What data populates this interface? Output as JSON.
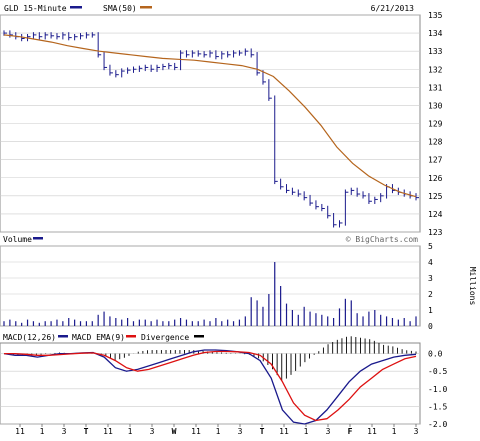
{
  "header": {
    "symbol_label": "GLD 15-Minute",
    "sma_label": "SMA(50)",
    "date": "6/21/2013"
  },
  "colors": {
    "price": "#1a1a8c",
    "sma": "#b5651d",
    "volume": "#1a1a8c",
    "macd": "#1a1a8c",
    "ema": "#dd1111",
    "divergence": "#000000",
    "grid": "#cccccc"
  },
  "volume_panel": {
    "label": "Volume",
    "units": "Millions",
    "brand": "© BigCharts.com"
  },
  "macd_panel": {
    "macd_label": "MACD(12,26)",
    "ema_label": "MACD EMA(9)",
    "divergence_label": "Divergence"
  },
  "chart_data": [
    {
      "type": "line",
      "title": "GLD 15-Minute",
      "ylim": [
        123,
        135
      ],
      "yticks": [
        123,
        124,
        125,
        126,
        127,
        128,
        129,
        130,
        131,
        132,
        133,
        134,
        135
      ],
      "x_labels": [
        "11",
        "1",
        "3",
        "T",
        "11",
        "1",
        "3",
        "W",
        "11",
        "1",
        "3",
        "T",
        "11",
        "1",
        "3",
        "F",
        "11",
        "1",
        "3"
      ],
      "series": [
        {
          "name": "GLD",
          "values": [
            134,
            133.9,
            133.8,
            133.7,
            133.8,
            133.9,
            133.8,
            133.9,
            133.85,
            133.8,
            133.9,
            133.75,
            133.8,
            133.85,
            133.9,
            133.9,
            132.8,
            132.1,
            131.8,
            131.7,
            131.9,
            131.95,
            132.0,
            132.05,
            132.1,
            132.0,
            132.1,
            132.15,
            132.2,
            132.1,
            132.9,
            132.8,
            132.9,
            132.85,
            132.8,
            132.9,
            132.7,
            132.85,
            132.8,
            132.9,
            132.9,
            133.0,
            132.8,
            131.8,
            131.3,
            130.4,
            125.8,
            125.5,
            125.3,
            125.2,
            125.1,
            124.9,
            124.6,
            124.4,
            124.3,
            123.9,
            123.4,
            123.5,
            125.2,
            125.3,
            125.1,
            125.0,
            124.7,
            124.8,
            125.0,
            125.5,
            125.3,
            125.2,
            125.1,
            125.0,
            124.9
          ]
        },
        {
          "name": "SMA(50)",
          "values": [
            133.9,
            133.8,
            133.65,
            133.5,
            133.3,
            133.15,
            133.0,
            132.9,
            132.8,
            132.7,
            132.6,
            132.55,
            132.5,
            132.4,
            132.3,
            132.2,
            132.0,
            131.6,
            130.8,
            129.9,
            128.9,
            127.7,
            126.8,
            126.1,
            125.6,
            125.2,
            124.95
          ]
        }
      ]
    },
    {
      "type": "bar",
      "title": "Volume",
      "ylabel": "Millions",
      "ylim": [
        0,
        5
      ],
      "yticks": [
        0,
        1,
        2,
        3,
        4,
        5
      ],
      "values": [
        0.3,
        0.4,
        0.3,
        0.2,
        0.4,
        0.3,
        0.2,
        0.3,
        0.3,
        0.4,
        0.3,
        0.5,
        0.4,
        0.3,
        0.3,
        0.3,
        0.7,
        0.9,
        0.6,
        0.5,
        0.4,
        0.5,
        0.3,
        0.4,
        0.4,
        0.3,
        0.4,
        0.3,
        0.3,
        0.4,
        0.5,
        0.4,
        0.3,
        0.3,
        0.4,
        0.3,
        0.5,
        0.3,
        0.4,
        0.3,
        0.4,
        0.6,
        1.8,
        1.6,
        1.2,
        2.0,
        4.0,
        2.5,
        1.4,
        1.0,
        0.7,
        1.2,
        0.9,
        0.8,
        0.7,
        0.6,
        0.5,
        1.1,
        1.7,
        1.6,
        0.8,
        0.6,
        0.9,
        1.0,
        0.7,
        0.6,
        0.5,
        0.4,
        0.5,
        0.3,
        0.6
      ]
    },
    {
      "type": "line",
      "title": "MACD(12,26)",
      "ylim": [
        -2.0,
        0.3
      ],
      "yticks": [
        0.0,
        -0.5,
        -1.0,
        -1.5,
        -2.0
      ],
      "series": [
        {
          "name": "MACD(12,26)",
          "values": [
            0.0,
            -0.05,
            -0.05,
            -0.1,
            -0.05,
            0.0,
            0.0,
            0.02,
            0.03,
            -0.1,
            -0.4,
            -0.5,
            -0.45,
            -0.35,
            -0.25,
            -0.15,
            -0.05,
            0.05,
            0.1,
            0.1,
            0.08,
            0.05,
            0.0,
            -0.2,
            -0.7,
            -1.6,
            -1.95,
            -2.0,
            -1.9,
            -1.6,
            -1.2,
            -0.8,
            -0.5,
            -0.3,
            -0.2,
            -0.1,
            -0.05,
            -0.02
          ]
        },
        {
          "name": "MACD EMA(9)",
          "values": [
            0.0,
            0.0,
            -0.02,
            -0.05,
            -0.05,
            -0.03,
            -0.01,
            0.01,
            0.02,
            -0.05,
            -0.2,
            -0.4,
            -0.5,
            -0.45,
            -0.35,
            -0.25,
            -0.15,
            -0.05,
            0.03,
            0.06,
            0.06,
            0.05,
            0.03,
            -0.05,
            -0.3,
            -0.8,
            -1.4,
            -1.75,
            -1.9,
            -1.85,
            -1.6,
            -1.3,
            -0.95,
            -0.7,
            -0.45,
            -0.3,
            -0.15,
            -0.08
          ]
        },
        {
          "name": "Divergence",
          "values": [
            0.0,
            -0.05,
            -0.03,
            -0.05,
            0.0,
            0.03,
            0.01,
            0.01,
            0.01,
            -0.05,
            -0.2,
            -0.1,
            0.05,
            0.1,
            0.1,
            0.1,
            0.1,
            0.1,
            0.07,
            0.04,
            0.02,
            0.0,
            -0.03,
            -0.15,
            -0.4,
            -0.8,
            -0.55,
            -0.25,
            0.0,
            0.25,
            0.4,
            0.5,
            0.45,
            0.4,
            0.25,
            0.2,
            0.1,
            0.06
          ]
        }
      ]
    }
  ]
}
